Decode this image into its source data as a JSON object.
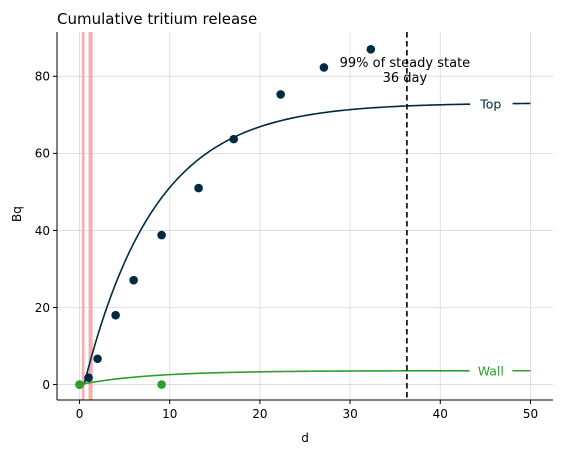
{
  "chart_data": {
    "type": "line",
    "title": "Cumulative tritium release",
    "xlabel": "d",
    "ylabel": "Bq",
    "xlim": [
      -2.5,
      52.5
    ],
    "ylim": [
      -4,
      91.5
    ],
    "xticks": [
      0,
      10,
      20,
      30,
      40,
      50
    ],
    "yticks": [
      0,
      20,
      40,
      60,
      80
    ],
    "grid": true,
    "spines": "left-bottom",
    "series": [
      {
        "name": "Top",
        "kind": "line",
        "color": "#002a40",
        "label_at_x": 45,
        "curve": {
          "asymptote": 73.1,
          "tau_days": 7.9,
          "x_start": 0.5,
          "x_end": 50
        }
      },
      {
        "name": "Wall",
        "kind": "line",
        "color": "#2ca02c",
        "label_at_x": 45,
        "curve": {
          "asymptote": 3.6,
          "tau_days": 7.9,
          "x_start": 0,
          "x_end": 50
        }
      }
    ],
    "scatter_series": [
      {
        "color": "#002a40",
        "points": [
          {
            "x": 0,
            "y": 0
          },
          {
            "x": 1,
            "y": 1.8
          },
          {
            "x": 2,
            "y": 6.7
          },
          {
            "x": 4,
            "y": 18.0
          },
          {
            "x": 6,
            "y": 27.1
          },
          {
            "x": 9.1,
            "y": 38.8
          },
          {
            "x": 13.2,
            "y": 51.0
          },
          {
            "x": 17.1,
            "y": 63.7
          },
          {
            "x": 22.3,
            "y": 75.3
          },
          {
            "x": 27.1,
            "y": 82.3
          },
          {
            "x": 32.3,
            "y": 87.0
          }
        ]
      },
      {
        "color": "#2ca02c",
        "points": [
          {
            "x": 0,
            "y": 0
          },
          {
            "x": 9.1,
            "y": 0
          }
        ]
      }
    ],
    "vbands": [
      {
        "x0": 0.25,
        "x1": 0.55,
        "color": "#f4a6a6"
      },
      {
        "x0": 1.0,
        "x1": 1.45,
        "color": "#f4a6a6"
      }
    ],
    "vlines": [
      {
        "x": 36.3,
        "style": "dashed",
        "color": "#000000"
      }
    ],
    "annotations": [
      {
        "text": "99% of steady state",
        "x": 36.3,
        "y": 83.5
      },
      {
        "text": "36 day",
        "x": 36.3,
        "y": 79.5
      }
    ]
  }
}
